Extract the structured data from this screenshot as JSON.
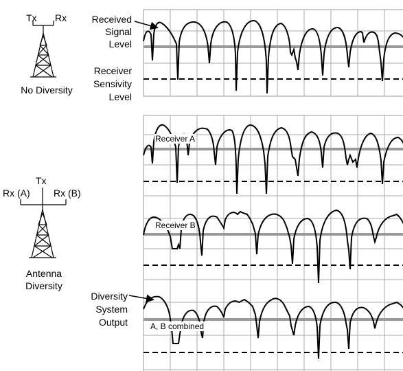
{
  "top": {
    "tx_label": "Tx",
    "rx_label": "Rx",
    "caption": "No Diversity",
    "received_label": [
      "Received",
      "Signal",
      "Level"
    ],
    "sensitivity_label": [
      "Receiver",
      "Sensivity",
      "Level"
    ]
  },
  "diversity": {
    "tx_label": "Tx",
    "rxa_label": "Rx (A)",
    "rxb_label": "Rx (B)",
    "caption": [
      "Antenna",
      "Diversity"
    ],
    "output_label": [
      "Diversity",
      "System",
      "Output"
    ],
    "receiver_a": "Receiver A",
    "receiver_b": "Receiver B",
    "combined": "A, B combined"
  }
}
